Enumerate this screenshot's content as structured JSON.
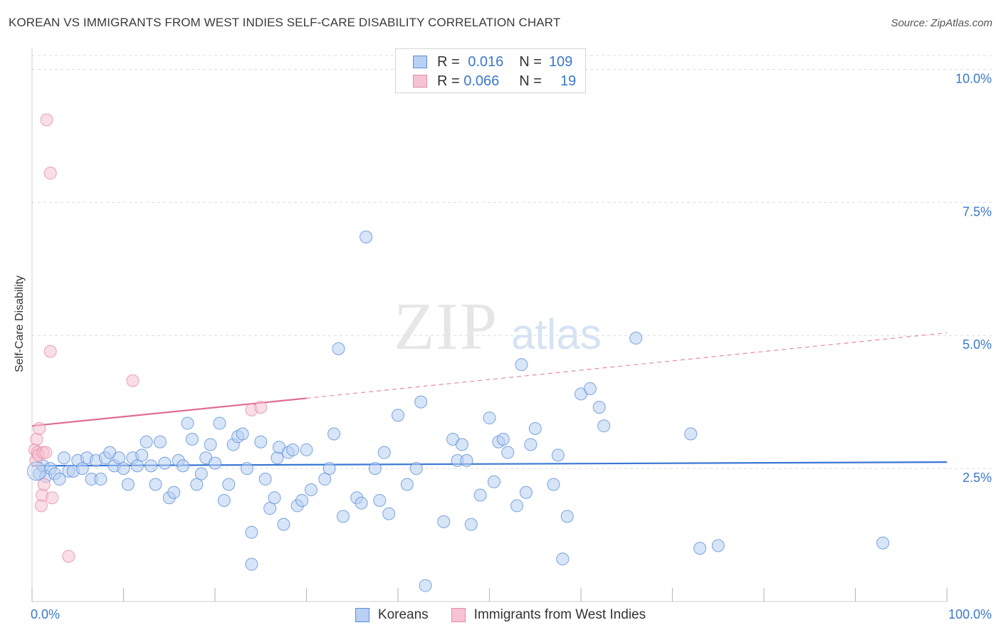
{
  "title": "KOREAN VS IMMIGRANTS FROM WEST INDIES SELF-CARE DISABILITY CORRELATION CHART",
  "source": "Source: ZipAtlas.com",
  "watermark": {
    "zip": "ZIP",
    "atlas": "atlas"
  },
  "colors": {
    "blue_fill": "#b8d0f2",
    "blue_stroke": "#5b8fd6",
    "blue_line": "#3a78d4",
    "pink_fill": "#f6c3d2",
    "pink_stroke": "#e48ba6",
    "pink_line": "#e06c92",
    "tick_text": "#3a78c9",
    "grid": "#dcdcdc"
  },
  "legend_top": {
    "rows": [
      {
        "r_label": "R =",
        "r_value": "0.016",
        "n_label": "N =",
        "n_value": "109"
      },
      {
        "r_label": "R =",
        "r_value": "0.066",
        "n_label": "N =",
        "n_value": "19"
      }
    ]
  },
  "bottom_legend": [
    "Koreans",
    "Immigrants from West Indies"
  ],
  "chart_data": {
    "type": "scatter",
    "title": "KOREAN VS IMMIGRANTS FROM WEST INDIES SELF-CARE DISABILITY CORRELATION CHART",
    "xlabel": "",
    "ylabel": "Self-Care Disability",
    "xlim": [
      0,
      100
    ],
    "ylim": [
      0,
      10.5
    ],
    "x_tick_labels": [
      "0.0%",
      "100.0%"
    ],
    "y_ticks": [
      2.5,
      5.0,
      7.5,
      10.0
    ],
    "y_tick_labels": [
      "2.5%",
      "5.0%",
      "7.5%",
      "10.0%"
    ],
    "series": [
      {
        "name": "Koreans",
        "r": 0.016,
        "n": 109,
        "trend": {
          "x0": 0,
          "y0": 2.55,
          "x1": 100,
          "y1": 2.62,
          "dashed_from": null
        },
        "points": [
          [
            0.8,
            2.4
          ],
          [
            1.2,
            2.55
          ],
          [
            1.5,
            2.35
          ],
          [
            2.0,
            2.5
          ],
          [
            2.5,
            2.4
          ],
          [
            3.0,
            2.3
          ],
          [
            3.5,
            2.7
          ],
          [
            4.0,
            2.45
          ],
          [
            4.5,
            2.45
          ],
          [
            5.0,
            2.65
          ],
          [
            5.5,
            2.5
          ],
          [
            6.0,
            2.7
          ],
          [
            6.5,
            2.3
          ],
          [
            7.0,
            2.65
          ],
          [
            7.5,
            2.3
          ],
          [
            8.0,
            2.7
          ],
          [
            8.5,
            2.8
          ],
          [
            9.0,
            2.55
          ],
          [
            9.5,
            2.7
          ],
          [
            10.0,
            2.5
          ],
          [
            10.5,
            2.2
          ],
          [
            11.0,
            2.7
          ],
          [
            11.5,
            2.55
          ],
          [
            12.0,
            2.75
          ],
          [
            12.5,
            3.0
          ],
          [
            13.0,
            2.55
          ],
          [
            13.5,
            2.2
          ],
          [
            14.0,
            3.0
          ],
          [
            14.5,
            2.6
          ],
          [
            15.0,
            1.95
          ],
          [
            15.5,
            2.05
          ],
          [
            16.0,
            2.65
          ],
          [
            16.5,
            2.55
          ],
          [
            17.0,
            3.35
          ],
          [
            17.5,
            3.05
          ],
          [
            18.0,
            2.2
          ],
          [
            18.5,
            2.4
          ],
          [
            19.0,
            2.7
          ],
          [
            19.5,
            2.95
          ],
          [
            20.0,
            2.6
          ],
          [
            20.5,
            3.35
          ],
          [
            21.0,
            1.9
          ],
          [
            21.5,
            2.2
          ],
          [
            22.0,
            2.95
          ],
          [
            22.5,
            3.1
          ],
          [
            23.0,
            3.15
          ],
          [
            23.5,
            2.5
          ],
          [
            24.0,
            1.3
          ],
          [
            24.0,
            0.7
          ],
          [
            25.0,
            3.0
          ],
          [
            25.5,
            2.3
          ],
          [
            26.0,
            1.75
          ],
          [
            26.5,
            1.95
          ],
          [
            26.8,
            2.7
          ],
          [
            27.0,
            2.9
          ],
          [
            27.5,
            1.45
          ],
          [
            28.0,
            2.8
          ],
          [
            28.5,
            2.85
          ],
          [
            29.0,
            1.8
          ],
          [
            29.5,
            1.9
          ],
          [
            30.0,
            2.85
          ],
          [
            30.5,
            2.1
          ],
          [
            32.0,
            2.3
          ],
          [
            32.5,
            2.5
          ],
          [
            33.0,
            3.15
          ],
          [
            33.5,
            4.75
          ],
          [
            34.0,
            1.6
          ],
          [
            35.5,
            1.95
          ],
          [
            36.0,
            1.85
          ],
          [
            36.5,
            6.85
          ],
          [
            37.5,
            2.5
          ],
          [
            38.0,
            1.9
          ],
          [
            38.5,
            2.8
          ],
          [
            39.0,
            1.65
          ],
          [
            40.0,
            3.5
          ],
          [
            41.0,
            2.2
          ],
          [
            42.0,
            2.5
          ],
          [
            42.5,
            3.75
          ],
          [
            43.0,
            0.3
          ],
          [
            45.0,
            1.5
          ],
          [
            46.0,
            3.05
          ],
          [
            46.5,
            2.65
          ],
          [
            47.0,
            2.95
          ],
          [
            47.5,
            2.65
          ],
          [
            48.0,
            1.45
          ],
          [
            49.0,
            2.0
          ],
          [
            50.0,
            3.45
          ],
          [
            50.5,
            2.25
          ],
          [
            51.0,
            3.0
          ],
          [
            51.5,
            3.05
          ],
          [
            52.0,
            2.8
          ],
          [
            53.0,
            1.8
          ],
          [
            53.5,
            4.45
          ],
          [
            54.0,
            2.05
          ],
          [
            54.5,
            2.95
          ],
          [
            55.0,
            3.25
          ],
          [
            57.0,
            2.2
          ],
          [
            57.5,
            2.75
          ],
          [
            58.0,
            0.8
          ],
          [
            58.5,
            1.6
          ],
          [
            60.0,
            3.9
          ],
          [
            61.0,
            4.0
          ],
          [
            62.0,
            3.65
          ],
          [
            62.5,
            3.3
          ],
          [
            66.0,
            4.95
          ],
          [
            72.0,
            3.15
          ],
          [
            73.0,
            1.0
          ],
          [
            75.0,
            1.05
          ],
          [
            93.0,
            1.1
          ]
        ]
      },
      {
        "name": "Immigrants from West Indies",
        "r": 0.066,
        "n": 19,
        "trend": {
          "x0": 0,
          "y0": 3.3,
          "x1": 30,
          "y1": 3.82,
          "dashed_to_x": 100,
          "dashed_to_y": 5.05
        },
        "points": [
          [
            0.3,
            2.85
          ],
          [
            0.4,
            2.65
          ],
          [
            0.5,
            3.05
          ],
          [
            0.6,
            2.8
          ],
          [
            0.7,
            2.75
          ],
          [
            0.8,
            3.25
          ],
          [
            1.0,
            1.8
          ],
          [
            1.1,
            2.0
          ],
          [
            1.2,
            2.8
          ],
          [
            1.3,
            2.2
          ],
          [
            1.5,
            2.8
          ],
          [
            1.6,
            9.05
          ],
          [
            2.0,
            4.7
          ],
          [
            2.0,
            8.05
          ],
          [
            2.2,
            1.95
          ],
          [
            4.0,
            0.85
          ],
          [
            11.0,
            4.15
          ],
          [
            24.0,
            3.6
          ],
          [
            25.0,
            3.65
          ]
        ]
      }
    ],
    "legend": "top-center"
  }
}
